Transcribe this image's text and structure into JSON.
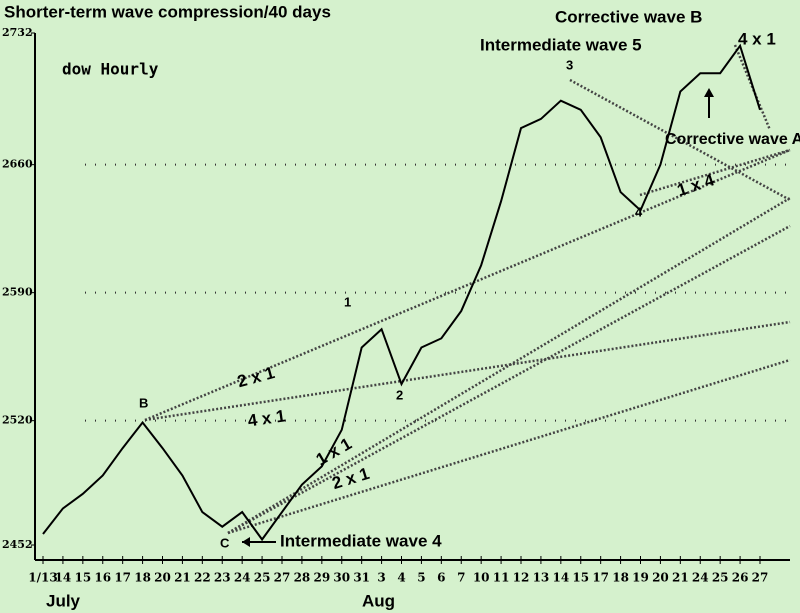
{
  "chart_data": {
    "type": "line",
    "title": "Shorter-term wave compression/40 days",
    "subtitle": "dow Hourly",
    "categories": [
      "1/13",
      "14",
      "15",
      "16",
      "17",
      "18",
      "20",
      "21",
      "22",
      "23",
      "24",
      "25",
      "27",
      "28",
      "29",
      "30",
      "31",
      "3",
      "4",
      "5",
      "6",
      "7",
      "10",
      "11",
      "12",
      "13",
      "14",
      "15",
      "17",
      "18",
      "19",
      "20",
      "21",
      "24",
      "25",
      "26",
      "27"
    ],
    "months": [
      "July",
      "Aug"
    ],
    "series": [
      {
        "name": "dow Hourly",
        "color": "#000000",
        "values": [
          2458,
          2472,
          2480,
          2490,
          2505,
          2519,
          2505,
          2490,
          2470,
          2462,
          2470,
          2455,
          2470,
          2485,
          2495,
          2515,
          2560,
          2570,
          2540,
          2560,
          2565,
          2580,
          2605,
          2640,
          2680,
          2685,
          2695,
          2690,
          2675,
          2645,
          2635,
          2660,
          2700,
          2710,
          2710,
          2725,
          2690
        ]
      }
    ],
    "ylim": [
      2452,
      2732
    ],
    "yticks": [
      2452,
      2520,
      2590,
      2660,
      2732
    ],
    "grid": true,
    "annotations": [
      "Corrective wave B",
      "Intermediate wave 5",
      "4 x 1",
      "Corrective wave A",
      "1 x 4",
      "2 x 1",
      "4 x 1",
      "1 x 1",
      "2 x 1",
      "B",
      "C",
      "1",
      "2",
      "3",
      "4",
      "Intermediate wave 4"
    ]
  }
}
